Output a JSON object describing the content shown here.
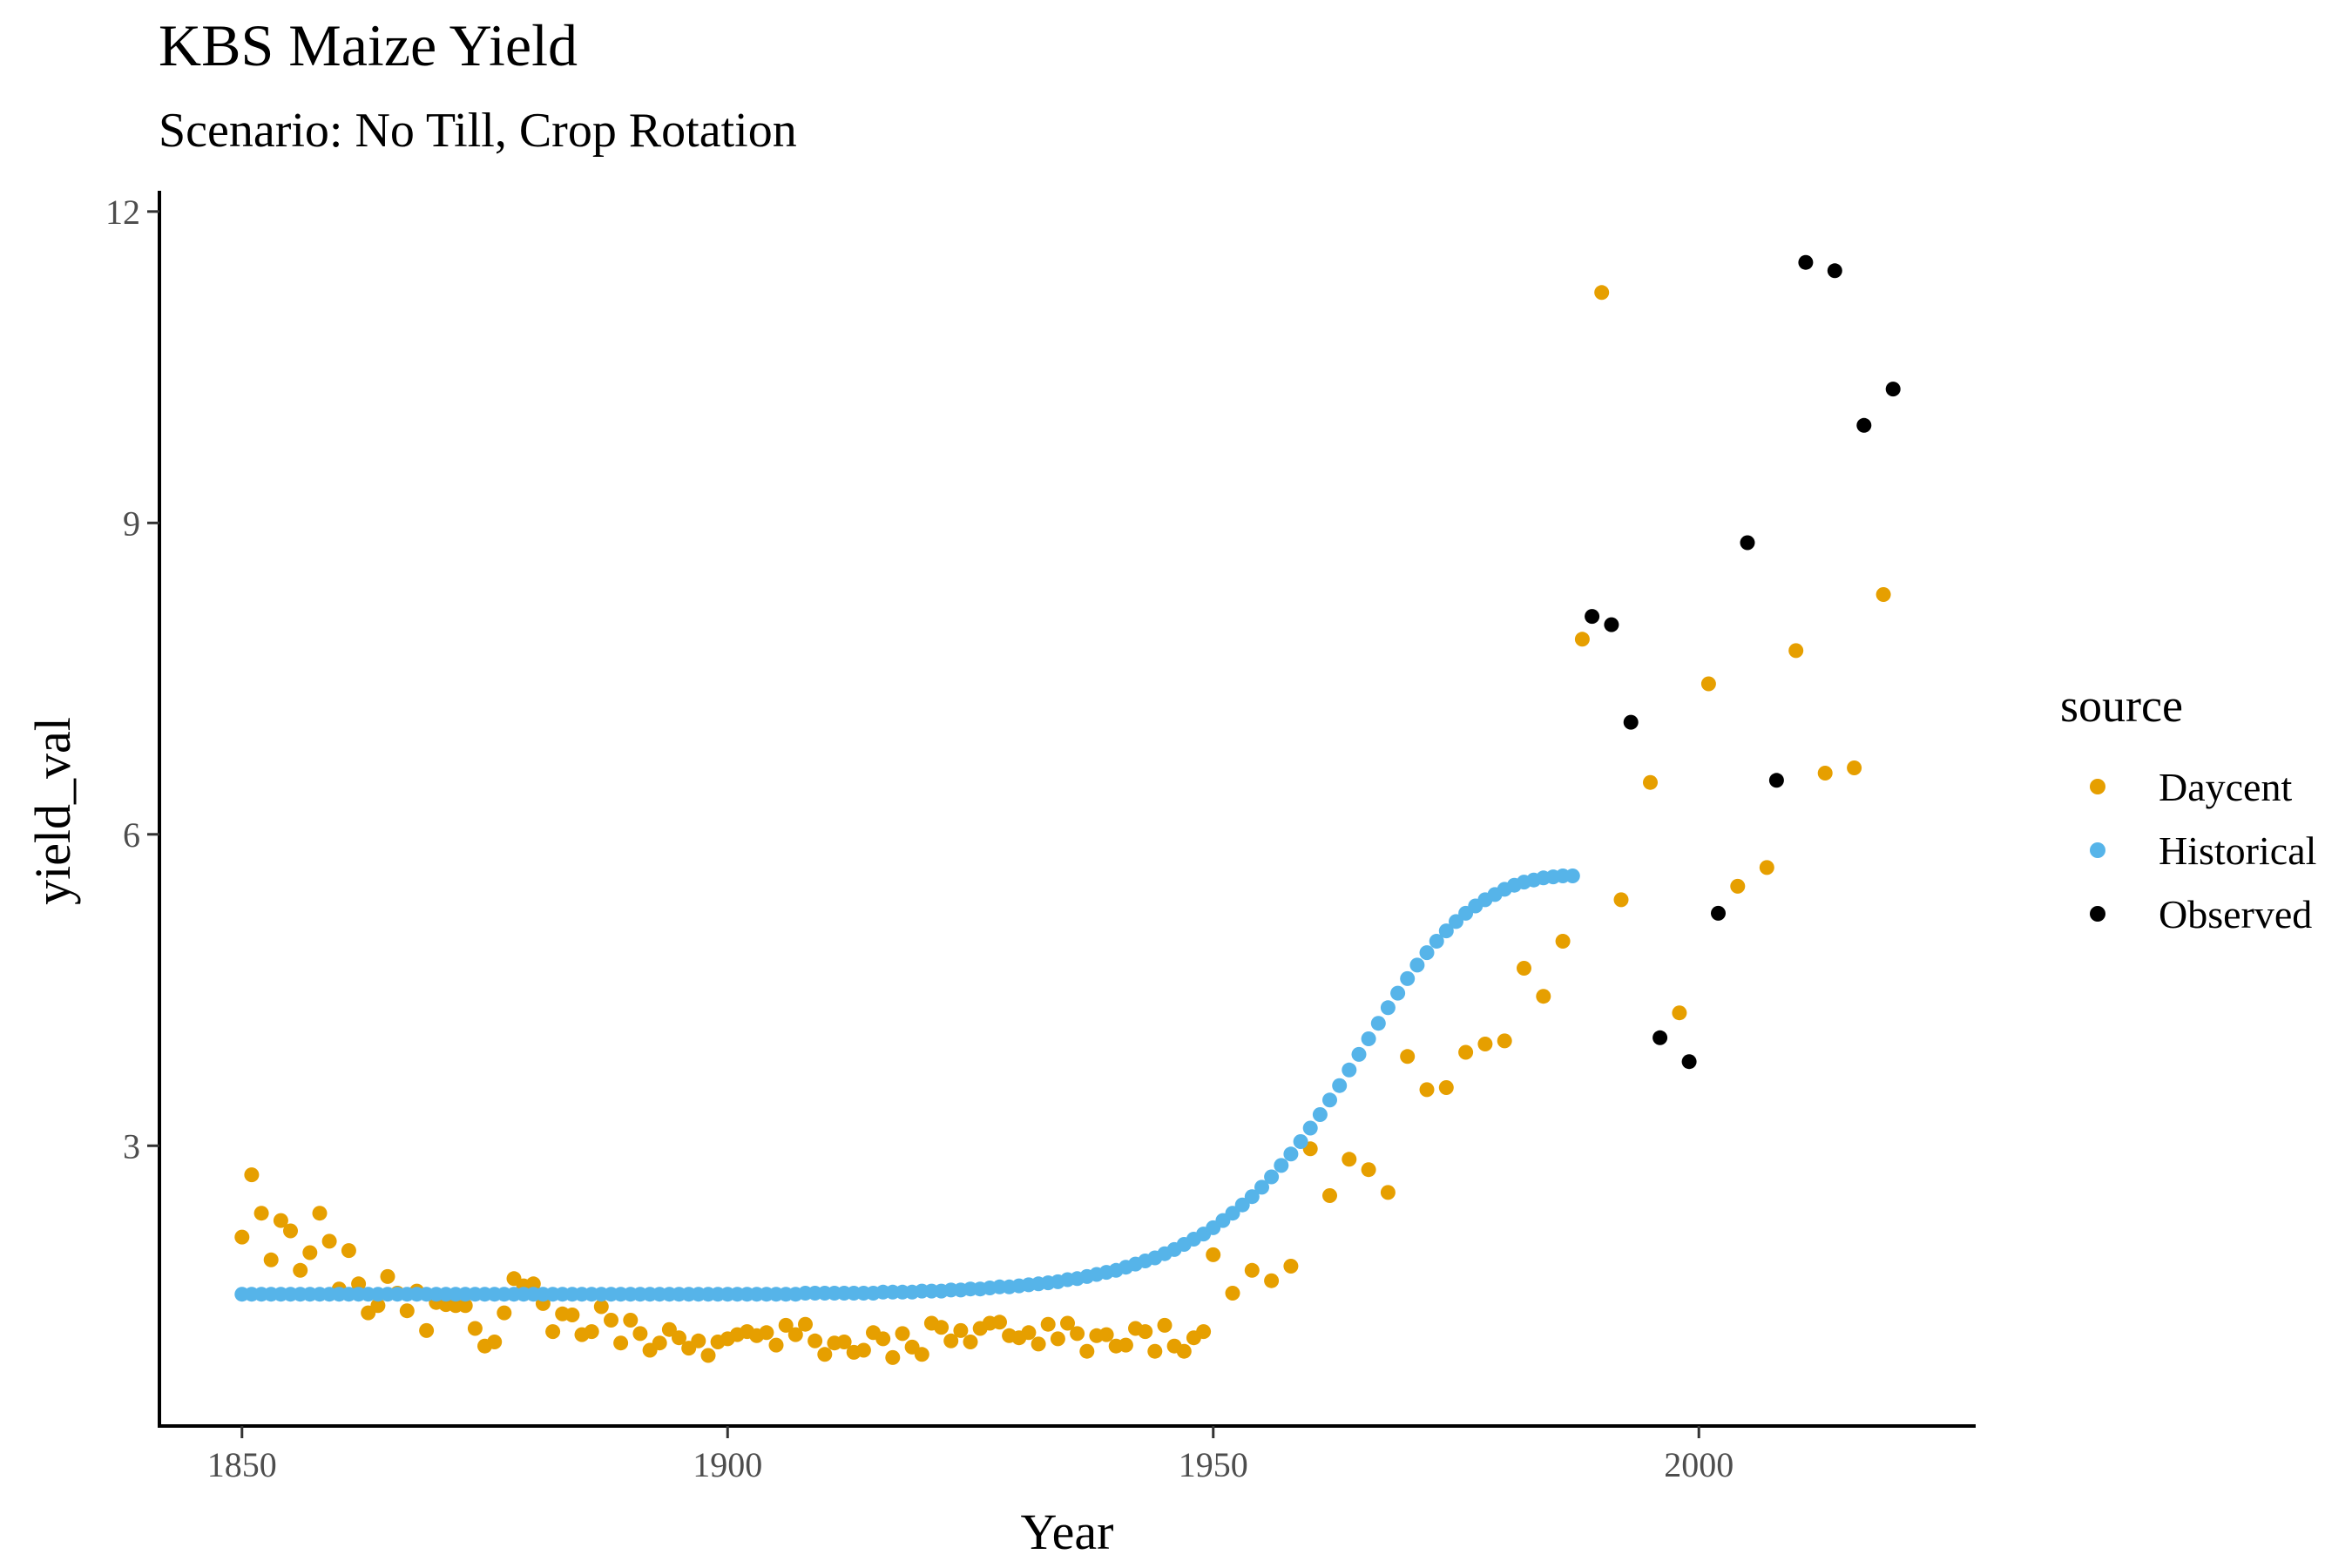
{
  "chart_data": {
    "type": "scatter",
    "title": "KBS Maize Yield",
    "subtitle": "Scenario: No Till, Crop Rotation",
    "xlabel": "Year",
    "ylabel": "yield_val",
    "xlim": [
      1841.5,
      2028.5
    ],
    "ylim": [
      0.3,
      12.2
    ],
    "xticks": [
      1850,
      1900,
      1950,
      2000
    ],
    "yticks": [
      3,
      6,
      9,
      12
    ],
    "grid": false,
    "legend": {
      "title": "source",
      "placement": "right"
    },
    "series": [
      {
        "name": "Daycent",
        "color": "#E69F00",
        "x": [
          1850,
          1851,
          1852,
          1853,
          1854,
          1855,
          1856,
          1857,
          1858,
          1859,
          1860,
          1861,
          1862,
          1863,
          1864,
          1865,
          1866,
          1867,
          1868,
          1869,
          1870,
          1871,
          1872,
          1873,
          1874,
          1875,
          1876,
          1877,
          1878,
          1879,
          1880,
          1881,
          1882,
          1883,
          1884,
          1885,
          1886,
          1887,
          1888,
          1889,
          1890,
          1891,
          1892,
          1893,
          1894,
          1895,
          1896,
          1897,
          1898,
          1899,
          1900,
          1901,
          1902,
          1903,
          1904,
          1905,
          1906,
          1907,
          1908,
          1909,
          1910,
          1911,
          1912,
          1913,
          1914,
          1915,
          1916,
          1917,
          1918,
          1919,
          1920,
          1921,
          1922,
          1923,
          1924,
          1925,
          1926,
          1927,
          1928,
          1929,
          1930,
          1931,
          1932,
          1933,
          1934,
          1935,
          1936,
          1937,
          1938,
          1939,
          1940,
          1941,
          1942,
          1943,
          1944,
          1945,
          1946,
          1947,
          1948,
          1949,
          1950,
          1952,
          1954,
          1956,
          1958,
          1960,
          1962,
          1964,
          1966,
          1968,
          1970,
          1972,
          1974,
          1976,
          1978,
          1980,
          1982,
          1984,
          1986,
          1988,
          1990,
          1992,
          1995,
          1998,
          2001,
          2004,
          2007,
          2010,
          2013,
          2016,
          2019
        ],
        "y": [
          2.12,
          2.72,
          2.35,
          1.9,
          2.28,
          2.18,
          1.8,
          1.97,
          2.35,
          2.08,
          1.62,
          1.99,
          1.67,
          1.39,
          1.46,
          1.74,
          1.58,
          1.41,
          1.6,
          1.22,
          1.49,
          1.47,
          1.46,
          1.46,
          1.24,
          1.07,
          1.11,
          1.39,
          1.72,
          1.65,
          1.67,
          1.48,
          1.21,
          1.38,
          1.37,
          1.18,
          1.21,
          1.45,
          1.32,
          1.1,
          1.32,
          1.19,
          1.03,
          1.1,
          1.23,
          1.15,
          1.05,
          1.12,
          0.98,
          1.11,
          1.14,
          1.18,
          1.21,
          1.17,
          1.2,
          1.08,
          1.27,
          1.18,
          1.28,
          1.12,
          0.99,
          1.1,
          1.11,
          1.01,
          1.03,
          1.2,
          1.14,
          0.96,
          1.19,
          1.06,
          0.99,
          1.29,
          1.25,
          1.12,
          1.22,
          1.11,
          1.24,
          1.29,
          1.3,
          1.17,
          1.15,
          1.2,
          1.09,
          1.28,
          1.14,
          1.29,
          1.19,
          1.02,
          1.17,
          1.18,
          1.07,
          1.08,
          1.24,
          1.21,
          1.02,
          1.27,
          1.07,
          1.02,
          1.15,
          1.21,
          1.95,
          1.58,
          1.8,
          1.7,
          1.84,
          2.97,
          2.52,
          2.87,
          2.77,
          2.55,
          3.86,
          3.54,
          3.56,
          3.9,
          3.98,
          4.01,
          4.71,
          4.44,
          4.97,
          7.88,
          11.22,
          5.37,
          6.5,
          4.28,
          7.45,
          5.5,
          5.68,
          7.77,
          6.59,
          6.64,
          8.31
        ]
      },
      {
        "name": "Historical",
        "color": "#56B4E9",
        "x": [
          1850,
          1851,
          1852,
          1853,
          1854,
          1855,
          1856,
          1857,
          1858,
          1859,
          1860,
          1861,
          1862,
          1863,
          1864,
          1865,
          1866,
          1867,
          1868,
          1869,
          1870,
          1871,
          1872,
          1873,
          1874,
          1875,
          1876,
          1877,
          1878,
          1879,
          1880,
          1881,
          1882,
          1883,
          1884,
          1885,
          1886,
          1887,
          1888,
          1889,
          1890,
          1891,
          1892,
          1893,
          1894,
          1895,
          1896,
          1897,
          1898,
          1899,
          1900,
          1901,
          1902,
          1903,
          1904,
          1905,
          1906,
          1907,
          1908,
          1909,
          1910,
          1911,
          1912,
          1913,
          1914,
          1915,
          1916,
          1917,
          1918,
          1919,
          1920,
          1921,
          1922,
          1923,
          1924,
          1925,
          1926,
          1927,
          1928,
          1929,
          1930,
          1931,
          1932,
          1933,
          1934,
          1935,
          1936,
          1937,
          1938,
          1939,
          1940,
          1941,
          1942,
          1943,
          1944,
          1945,
          1946,
          1947,
          1948,
          1949,
          1950,
          1951,
          1952,
          1953,
          1954,
          1955,
          1956,
          1957,
          1958,
          1959,
          1960,
          1961,
          1962,
          1963,
          1964,
          1965,
          1966,
          1967,
          1968,
          1969,
          1970,
          1971,
          1972,
          1973,
          1974,
          1975,
          1976,
          1977,
          1978,
          1979,
          1980,
          1981,
          1982,
          1983,
          1984,
          1985,
          1986,
          1987
        ],
        "y": [
          1.57,
          1.57,
          1.57,
          1.57,
          1.57,
          1.57,
          1.57,
          1.57,
          1.57,
          1.57,
          1.57,
          1.57,
          1.57,
          1.57,
          1.57,
          1.57,
          1.57,
          1.57,
          1.57,
          1.57,
          1.57,
          1.57,
          1.57,
          1.57,
          1.57,
          1.57,
          1.57,
          1.57,
          1.57,
          1.57,
          1.57,
          1.57,
          1.57,
          1.57,
          1.57,
          1.57,
          1.57,
          1.57,
          1.57,
          1.57,
          1.57,
          1.57,
          1.57,
          1.57,
          1.57,
          1.57,
          1.57,
          1.57,
          1.57,
          1.57,
          1.57,
          1.57,
          1.57,
          1.57,
          1.57,
          1.57,
          1.57,
          1.57,
          1.58,
          1.58,
          1.58,
          1.58,
          1.58,
          1.58,
          1.58,
          1.58,
          1.59,
          1.59,
          1.59,
          1.59,
          1.6,
          1.6,
          1.6,
          1.61,
          1.61,
          1.62,
          1.62,
          1.63,
          1.64,
          1.64,
          1.65,
          1.66,
          1.67,
          1.68,
          1.69,
          1.71,
          1.72,
          1.74,
          1.76,
          1.78,
          1.8,
          1.83,
          1.86,
          1.89,
          1.92,
          1.96,
          2.0,
          2.05,
          2.1,
          2.15,
          2.21,
          2.28,
          2.35,
          2.43,
          2.51,
          2.6,
          2.7,
          2.81,
          2.92,
          3.04,
          3.17,
          3.3,
          3.44,
          3.58,
          3.73,
          3.88,
          4.03,
          4.18,
          4.33,
          4.47,
          4.61,
          4.74,
          4.86,
          4.97,
          5.07,
          5.16,
          5.24,
          5.31,
          5.37,
          5.42,
          5.47,
          5.51,
          5.54,
          5.56,
          5.58,
          5.59,
          5.6,
          5.6
        ]
      },
      {
        "name": "Observed",
        "color": "#000000",
        "x": [
          1989,
          1991,
          1993,
          1996,
          1999,
          2002,
          2005,
          2008,
          2011,
          2014,
          2017,
          2020
        ],
        "y": [
          8.1,
          8.02,
          7.08,
          4.04,
          3.81,
          5.24,
          8.81,
          6.52,
          11.51,
          11.43,
          9.94,
          10.29
        ]
      }
    ]
  }
}
